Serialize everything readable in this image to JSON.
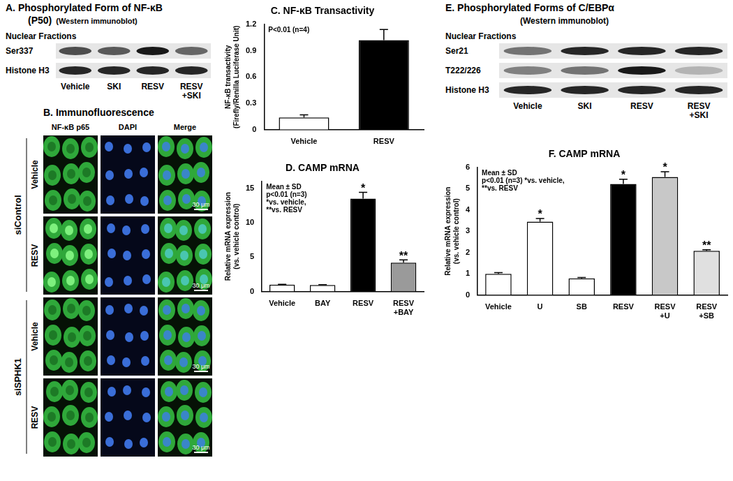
{
  "panels": {
    "A": {
      "title": "A. Phosphorylated Form of NF-κB",
      "subtitle": "(P50)",
      "note": "(Western immunoblot)",
      "fraction": "Nuclear Fractions",
      "lanes": [
        "Vehicle",
        "SKI",
        "RESV",
        "RESV +SKI"
      ],
      "rows": [
        {
          "label": "Ser337",
          "band_intensity": [
            0.7,
            0.65,
            0.9,
            0.6
          ]
        },
        {
          "label": "Histone H3",
          "band_intensity": [
            0.85,
            0.85,
            0.85,
            0.85
          ]
        }
      ]
    },
    "B": {
      "title": "B. Immunofluorescence",
      "columns": [
        "NF-κB p65",
        "DAPI",
        "Merge"
      ],
      "groups": [
        {
          "label": "siControl",
          "rows": [
            "Vehicle",
            "RESV"
          ]
        },
        {
          "label": "siSPHK1",
          "rows": [
            "Vehicle",
            "RESV"
          ]
        }
      ],
      "scale_bar": "30 μm"
    },
    "E": {
      "title": "E. Phosphorylated Forms of C/EBPα",
      "note": "(Western immunoblot)",
      "fraction": "Nuclear Fractions",
      "lanes": [
        "Vehicle",
        "SKI",
        "RESV",
        "RESV +SKI"
      ],
      "rows": [
        {
          "label": "Ser21",
          "band_intensity": [
            0.55,
            0.85,
            0.85,
            0.85
          ]
        },
        {
          "label": "T222/226",
          "band_intensity": [
            0.5,
            0.55,
            0.9,
            0.3
          ]
        },
        {
          "label": "Histone H3",
          "band_intensity": [
            0.85,
            0.85,
            0.85,
            0.85
          ]
        }
      ]
    }
  },
  "chart_data": [
    {
      "type": "bar",
      "title": "C. NF-κB Transactivity",
      "ylabel": [
        "NF-κB transactivity",
        "(Firefly/Renilla Luciferase Unit)"
      ],
      "categories": [
        "Vehicle",
        "RESV"
      ],
      "values": [
        0.14,
        1.02
      ],
      "errors": [
        0.03,
        0.12
      ],
      "colors": [
        "#ffffff",
        "#000000"
      ],
      "ylim": [
        0,
        1.2
      ],
      "yticks": [
        0,
        0.3,
        0.6,
        0.9,
        1.2
      ],
      "grid": false,
      "annotation": [
        "P<0.01 (n=4)"
      ]
    },
    {
      "type": "bar",
      "title": "D. CAMP mRNA",
      "ylabel": [
        "Relative mRNA expression",
        "(vs. vehicle control)"
      ],
      "categories": [
        "Vehicle",
        "BAY",
        "RESV",
        "RESV +BAY"
      ],
      "values": [
        1.0,
        0.95,
        13.5,
        4.2
      ],
      "errors": [
        0.05,
        0.05,
        0.9,
        0.4
      ],
      "significance": [
        null,
        null,
        "*",
        "**"
      ],
      "colors": [
        "#ffffff",
        "#ffffff",
        "#000000",
        "#9a9a9a"
      ],
      "ylim": [
        0,
        16
      ],
      "yticks": [
        0,
        5,
        10,
        15
      ],
      "grid": false,
      "annotation": [
        "Mean ± SD",
        "p<0.01 (n=3)",
        "*vs. vehicle,",
        "**vs. RESV"
      ]
    },
    {
      "type": "bar",
      "title": "F. CAMP mRNA",
      "ylabel": [
        "Relative mRNA expression",
        "(vs. vehicle control)"
      ],
      "categories": [
        "Vehicle",
        "U",
        "SB",
        "RESV",
        "RESV +U",
        "RESV +SB"
      ],
      "values": [
        1.0,
        3.45,
        0.78,
        5.22,
        5.55,
        2.08
      ],
      "errors": [
        0.05,
        0.15,
        0.04,
        0.22,
        0.25,
        0.05
      ],
      "significance": [
        null,
        "*",
        null,
        "*",
        "*",
        "**"
      ],
      "colors": [
        "#ffffff",
        "#ffffff",
        "#ffffff",
        "#000000",
        "#c8c8c8",
        "#e0e0e0"
      ],
      "ylim": [
        0,
        6
      ],
      "yticks": [
        0,
        1,
        2,
        3,
        4,
        5,
        6
      ],
      "grid": false,
      "annotation": [
        "Mean ± SD",
        "p<0.01 (n=3) *vs. vehicle,",
        "**vs. RESV"
      ]
    }
  ]
}
